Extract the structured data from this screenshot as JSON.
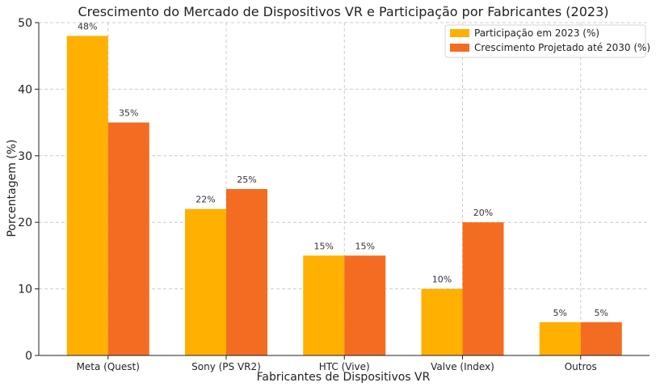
{
  "chart_data": {
    "type": "bar",
    "title": "Crescimento do Mercado de Dispositivos VR e Participação por Fabricantes (2023)",
    "xlabel": "Fabricantes de Dispositivos VR",
    "ylabel": "Porcentagem (%)",
    "categories": [
      "Meta (Quest)",
      "Sony (PS VR2)",
      "HTC (Vive)",
      "Valve (Index)",
      "Outros"
    ],
    "series": [
      {
        "name": "Participação em 2023 (%)",
        "values": [
          48,
          22,
          15,
          10,
          5
        ],
        "labels": [
          "48%",
          "22%",
          "15%",
          "10%",
          "5%"
        ],
        "color": "#FFB000"
      },
      {
        "name": "Crescimento Projetado até 2030 (%)",
        "values": [
          35,
          25,
          15,
          20,
          5
        ],
        "labels": [
          "35%",
          "25%",
          "15%",
          "20%",
          "5%"
        ],
        "color": "#F46C22"
      }
    ],
    "ylim": [
      0,
      50
    ],
    "yticks": [
      "0",
      "10",
      "20",
      "30",
      "40",
      "50"
    ],
    "grid": true,
    "legend_position": "top-right"
  }
}
